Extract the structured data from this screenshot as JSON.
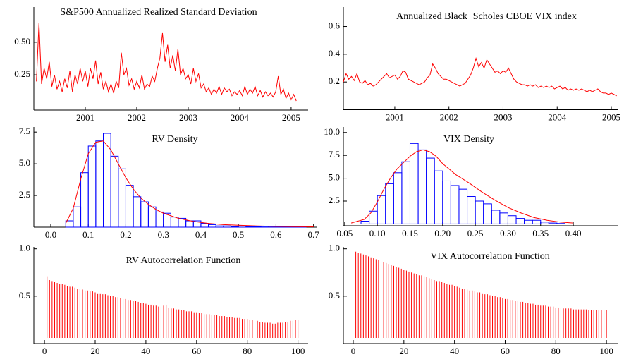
{
  "chart_data": [
    {
      "type": "line",
      "title": "S&P500 Annualized Realized Standard Deviation",
      "color": "#ff0000",
      "x": [
        2000.05,
        2000.1,
        2000.15,
        2000.2,
        2000.25,
        2000.3,
        2000.35,
        2000.4,
        2000.45,
        2000.5,
        2000.55,
        2000.6,
        2000.65,
        2000.7,
        2000.75,
        2000.8,
        2000.85,
        2000.9,
        2000.95,
        2001,
        2001.05,
        2001.1,
        2001.15,
        2001.2,
        2001.25,
        2001.3,
        2001.35,
        2001.4,
        2001.45,
        2001.5,
        2001.55,
        2001.6,
        2001.65,
        2001.7,
        2001.75,
        2001.8,
        2001.85,
        2001.9,
        2001.95,
        2002,
        2002.05,
        2002.1,
        2002.15,
        2002.2,
        2002.25,
        2002.3,
        2002.35,
        2002.4,
        2002.45,
        2002.5,
        2002.55,
        2002.6,
        2002.65,
        2002.7,
        2002.75,
        2002.8,
        2002.85,
        2002.9,
        2002.95,
        2003,
        2003.05,
        2003.1,
        2003.15,
        2003.2,
        2003.25,
        2003.3,
        2003.35,
        2003.4,
        2003.45,
        2003.5,
        2003.55,
        2003.6,
        2003.65,
        2003.7,
        2003.75,
        2003.8,
        2003.85,
        2003.9,
        2003.95,
        2004,
        2004.05,
        2004.1,
        2004.15,
        2004.2,
        2004.25,
        2004.3,
        2004.35,
        2004.4,
        2004.45,
        2004.5,
        2004.55,
        2004.6,
        2004.65,
        2004.7,
        2004.75,
        2004.8,
        2004.85,
        2004.9,
        2004.95,
        2005,
        2005.05,
        2005.1
      ],
      "values": [
        0.2,
        0.65,
        0.18,
        0.3,
        0.22,
        0.35,
        0.16,
        0.25,
        0.14,
        0.2,
        0.12,
        0.22,
        0.15,
        0.28,
        0.12,
        0.25,
        0.18,
        0.3,
        0.2,
        0.28,
        0.16,
        0.3,
        0.22,
        0.36,
        0.18,
        0.27,
        0.14,
        0.2,
        0.12,
        0.18,
        0.11,
        0.2,
        0.15,
        0.42,
        0.25,
        0.3,
        0.17,
        0.22,
        0.14,
        0.2,
        0.15,
        0.25,
        0.14,
        0.18,
        0.16,
        0.24,
        0.2,
        0.3,
        0.38,
        0.57,
        0.35,
        0.48,
        0.3,
        0.4,
        0.28,
        0.45,
        0.25,
        0.3,
        0.22,
        0.25,
        0.18,
        0.3,
        0.2,
        0.26,
        0.15,
        0.18,
        0.12,
        0.15,
        0.1,
        0.14,
        0.11,
        0.16,
        0.1,
        0.15,
        0.12,
        0.14,
        0.09,
        0.12,
        0.1,
        0.13,
        0.09,
        0.16,
        0.1,
        0.14,
        0.11,
        0.16,
        0.09,
        0.13,
        0.08,
        0.12,
        0.09,
        0.11,
        0.08,
        0.12,
        0.24,
        0.1,
        0.14,
        0.07,
        0.11,
        0.06,
        0.1,
        0.05
      ],
      "xlim": [
        2000.0,
        2005.33
      ],
      "xticks": [
        2001,
        2002,
        2003,
        2004,
        2005
      ],
      "ylim": [
        -0.02,
        0.77
      ],
      "yticks": [
        0.25,
        {
          "value": 0.5,
          "label": "0.50"
        }
      ]
    },
    {
      "type": "line",
      "title": "Annualized Black−Scholes CBOE VIX index",
      "color": "#ff0000",
      "x": [
        2000.05,
        2000.1,
        2000.15,
        2000.2,
        2000.25,
        2000.3,
        2000.35,
        2000.4,
        2000.45,
        2000.5,
        2000.55,
        2000.6,
        2000.65,
        2000.7,
        2000.75,
        2000.8,
        2000.85,
        2000.9,
        2000.95,
        2001,
        2001.05,
        2001.1,
        2001.15,
        2001.2,
        2001.25,
        2001.3,
        2001.35,
        2001.4,
        2001.45,
        2001.5,
        2001.55,
        2001.6,
        2001.65,
        2001.7,
        2001.75,
        2001.8,
        2001.85,
        2001.9,
        2001.95,
        2002,
        2002.05,
        2002.1,
        2002.15,
        2002.2,
        2002.25,
        2002.3,
        2002.35,
        2002.4,
        2002.45,
        2002.5,
        2002.55,
        2002.6,
        2002.65,
        2002.7,
        2002.75,
        2002.8,
        2002.85,
        2002.9,
        2002.95,
        2003,
        2003.05,
        2003.1,
        2003.15,
        2003.2,
        2003.25,
        2003.3,
        2003.35,
        2003.4,
        2003.45,
        2003.5,
        2003.55,
        2003.6,
        2003.65,
        2003.7,
        2003.75,
        2003.8,
        2003.85,
        2003.9,
        2003.95,
        2004,
        2004.05,
        2004.1,
        2004.15,
        2004.2,
        2004.25,
        2004.3,
        2004.35,
        2004.4,
        2004.45,
        2004.5,
        2004.55,
        2004.6,
        2004.65,
        2004.7,
        2004.75,
        2004.8,
        2004.85,
        2004.9,
        2004.95,
        2005,
        2005.05,
        2005.1
      ],
      "values": [
        0.2,
        0.26,
        0.22,
        0.24,
        0.21,
        0.26,
        0.2,
        0.19,
        0.21,
        0.18,
        0.19,
        0.17,
        0.18,
        0.2,
        0.22,
        0.24,
        0.26,
        0.23,
        0.24,
        0.25,
        0.22,
        0.24,
        0.28,
        0.27,
        0.22,
        0.21,
        0.2,
        0.19,
        0.18,
        0.19,
        0.2,
        0.23,
        0.25,
        0.33,
        0.3,
        0.26,
        0.24,
        0.22,
        0.22,
        0.21,
        0.2,
        0.19,
        0.18,
        0.17,
        0.18,
        0.19,
        0.22,
        0.25,
        0.3,
        0.37,
        0.31,
        0.34,
        0.3,
        0.36,
        0.33,
        0.3,
        0.27,
        0.28,
        0.26,
        0.28,
        0.27,
        0.3,
        0.26,
        0.22,
        0.2,
        0.19,
        0.18,
        0.18,
        0.17,
        0.18,
        0.17,
        0.18,
        0.16,
        0.17,
        0.16,
        0.17,
        0.16,
        0.17,
        0.15,
        0.16,
        0.17,
        0.15,
        0.16,
        0.14,
        0.15,
        0.14,
        0.15,
        0.14,
        0.15,
        0.14,
        0.13,
        0.14,
        0.13,
        0.14,
        0.15,
        0.13,
        0.12,
        0.12,
        0.11,
        0.12,
        0.11,
        0.1
      ],
      "xlim": [
        2000.05,
        2005.13
      ],
      "xticks": [
        2001,
        2002,
        2003,
        2004,
        2005
      ],
      "ylim": [
        0,
        0.74
      ],
      "yticks": [
        0.2,
        0.4,
        0.6
      ]
    },
    {
      "type": "histogram",
      "title": "RV Density",
      "color": "#0000ff",
      "bins": [
        0.04,
        0.06,
        0.08,
        0.1,
        0.12,
        0.14,
        0.16,
        0.18,
        0.2,
        0.22,
        0.24,
        0.26,
        0.28,
        0.3,
        0.32,
        0.34,
        0.36,
        0.38,
        0.4,
        0.42,
        0.44,
        0.46,
        0.48,
        0.5,
        0.52,
        0.54,
        0.56,
        0.58,
        0.6,
        0.62,
        0.64,
        0.66,
        0.68
      ],
      "values": [
        0.5,
        1.6,
        4.3,
        6.4,
        6.8,
        7.4,
        5.6,
        4.6,
        3.3,
        2.4,
        2.0,
        1.6,
        1.2,
        1.1,
        0.8,
        0.7,
        0.5,
        0.5,
        0.3,
        0.2,
        0.1,
        0.1,
        0.05,
        0.1,
        0.05,
        0.05,
        0.02,
        0.02,
        0.02,
        0.01,
        0.01,
        0.01
      ],
      "density": {
        "color": "#ff0000",
        "x": [
          0.04,
          0.06,
          0.08,
          0.1,
          0.12,
          0.14,
          0.16,
          0.18,
          0.2,
          0.22,
          0.24,
          0.26,
          0.28,
          0.3,
          0.34,
          0.38,
          0.42,
          0.46,
          0.5,
          0.55,
          0.6,
          0.65,
          0.7
        ],
        "values": [
          0.3,
          1.5,
          3.8,
          5.8,
          6.7,
          6.8,
          6.1,
          5.0,
          3.9,
          3.0,
          2.3,
          1.8,
          1.4,
          1.1,
          0.7,
          0.45,
          0.3,
          0.2,
          0.15,
          0.1,
          0.06,
          0.04,
          0.03
        ]
      },
      "xlim": [
        -0.045,
        0.71
      ],
      "xticks": [
        {
          "value": 0,
          "label": "0.0"
        },
        0.1,
        0.2,
        0.3,
        0.4,
        0.5,
        0.6,
        0.7
      ],
      "ylim": [
        0,
        7.9
      ],
      "yticks": [
        2.5,
        {
          "value": 5,
          "label": "5.0"
        },
        7.5
      ]
    },
    {
      "type": "histogram",
      "title": "VIX Density",
      "color": "#0000ff",
      "bins": [
        0.075,
        0.0875,
        0.1,
        0.1125,
        0.125,
        0.1375,
        0.15,
        0.1625,
        0.175,
        0.1875,
        0.2,
        0.2125,
        0.225,
        0.2375,
        0.25,
        0.2625,
        0.275,
        0.2875,
        0.3,
        0.3125,
        0.325,
        0.3375,
        0.35,
        0.3625,
        0.375,
        0.3875
      ],
      "values": [
        0.3,
        1.4,
        3.1,
        4.4,
        5.6,
        6.8,
        8.8,
        8.1,
        7.2,
        5.8,
        4.7,
        4.2,
        3.8,
        3.0,
        2.5,
        2.2,
        1.5,
        1.2,
        0.9,
        0.6,
        0.4,
        0.4,
        0.2,
        0.1,
        0.05
      ],
      "density": {
        "color": "#ff0000",
        "x": [
          0.06,
          0.08,
          0.09,
          0.1,
          0.11,
          0.12,
          0.13,
          0.14,
          0.15,
          0.16,
          0.17,
          0.18,
          0.19,
          0.2,
          0.22,
          0.24,
          0.26,
          0.28,
          0.3,
          0.32,
          0.34,
          0.36,
          0.38,
          0.4
        ],
        "values": [
          0.1,
          0.5,
          1.2,
          2.4,
          3.8,
          5.0,
          6.0,
          6.7,
          7.4,
          7.9,
          8.1,
          7.9,
          7.4,
          6.6,
          5.4,
          4.5,
          3.5,
          2.6,
          1.8,
          1.2,
          0.7,
          0.4,
          0.2,
          0.1
        ]
      },
      "xlim": [
        0.048,
        0.469
      ],
      "xticks": [
        0.05,
        {
          "value": 0.1,
          "label": "0.10"
        },
        0.15,
        {
          "value": 0.2,
          "label": "0.20"
        },
        0.25,
        {
          "value": 0.3,
          "label": "0.30"
        },
        0.35,
        {
          "value": 0.4,
          "label": "0.40"
        }
      ],
      "ylim": [
        -0.2,
        10.6
      ],
      "yticks": [
        2.5,
        {
          "value": 5,
          "label": "5.0"
        },
        7.5,
        {
          "value": 10,
          "label": "10.0"
        }
      ]
    },
    {
      "type": "stem",
      "title": "RV Autocorrelation Function",
      "color": "#ff0000",
      "x": [
        1,
        2,
        3,
        4,
        5,
        6,
        7,
        8,
        9,
        10,
        11,
        12,
        13,
        14,
        15,
        16,
        17,
        18,
        19,
        20,
        21,
        22,
        23,
        24,
        25,
        26,
        27,
        28,
        29,
        30,
        31,
        32,
        33,
        34,
        35,
        36,
        37,
        38,
        39,
        40,
        41,
        42,
        43,
        44,
        45,
        46,
        47,
        48,
        49,
        50,
        51,
        52,
        53,
        54,
        55,
        56,
        57,
        58,
        59,
        60,
        61,
        62,
        63,
        64,
        65,
        66,
        67,
        68,
        69,
        70,
        71,
        72,
        73,
        74,
        75,
        76,
        77,
        78,
        79,
        80,
        81,
        82,
        83,
        84,
        85,
        86,
        87,
        88,
        89,
        90,
        91,
        92,
        93,
        94,
        95,
        96,
        97,
        98,
        99,
        100
      ],
      "values": [
        0.71,
        0.67,
        0.66,
        0.65,
        0.64,
        0.63,
        0.63,
        0.62,
        0.61,
        0.6,
        0.6,
        0.59,
        0.58,
        0.58,
        0.57,
        0.56,
        0.56,
        0.55,
        0.55,
        0.54,
        0.53,
        0.53,
        0.52,
        0.52,
        0.51,
        0.5,
        0.5,
        0.49,
        0.49,
        0.48,
        0.47,
        0.47,
        0.46,
        0.46,
        0.45,
        0.45,
        0.44,
        0.43,
        0.43,
        0.42,
        0.41,
        0.41,
        0.4,
        0.4,
        0.39,
        0.39,
        0.4,
        0.41,
        0.38,
        0.37,
        0.37,
        0.36,
        0.36,
        0.35,
        0.35,
        0.34,
        0.34,
        0.34,
        0.33,
        0.33,
        0.32,
        0.32,
        0.31,
        0.31,
        0.31,
        0.3,
        0.3,
        0.3,
        0.29,
        0.29,
        0.29,
        0.28,
        0.28,
        0.28,
        0.27,
        0.27,
        0.27,
        0.26,
        0.26,
        0.26,
        0.25,
        0.25,
        0.24,
        0.24,
        0.23,
        0.23,
        0.22,
        0.22,
        0.22,
        0.21,
        0.21,
        0.22,
        0.22,
        0.22,
        0.23,
        0.23,
        0.24,
        0.24,
        0.25,
        0.25
      ],
      "xlim": [
        -4.2,
        104
      ],
      "xticks": [
        0,
        20,
        40,
        60,
        80,
        100
      ],
      "ylim": [
        0,
        1.02
      ],
      "yticks": [
        0.5,
        {
          "value": 1,
          "label": "1.0"
        }
      ]
    },
    {
      "type": "stem",
      "title": "VIX Autocorrelation Function",
      "color": "#ff0000",
      "x": [
        1,
        2,
        3,
        4,
        5,
        6,
        7,
        8,
        9,
        10,
        11,
        12,
        13,
        14,
        15,
        16,
        17,
        18,
        19,
        20,
        21,
        22,
        23,
        24,
        25,
        26,
        27,
        28,
        29,
        30,
        31,
        32,
        33,
        34,
        35,
        36,
        37,
        38,
        39,
        40,
        41,
        42,
        43,
        44,
        45,
        46,
        47,
        48,
        49,
        50,
        51,
        52,
        53,
        54,
        55,
        56,
        57,
        58,
        59,
        60,
        61,
        62,
        63,
        64,
        65,
        66,
        67,
        68,
        69,
        70,
        71,
        72,
        73,
        74,
        75,
        76,
        77,
        78,
        79,
        80,
        81,
        82,
        83,
        84,
        85,
        86,
        87,
        88,
        89,
        90,
        91,
        92,
        93,
        94,
        95,
        96,
        97,
        98,
        99,
        100
      ],
      "values": [
        0.97,
        0.96,
        0.95,
        0.94,
        0.93,
        0.92,
        0.91,
        0.9,
        0.89,
        0.88,
        0.87,
        0.86,
        0.85,
        0.84,
        0.83,
        0.82,
        0.81,
        0.8,
        0.79,
        0.78,
        0.77,
        0.76,
        0.75,
        0.74,
        0.73,
        0.72,
        0.72,
        0.71,
        0.7,
        0.69,
        0.68,
        0.67,
        0.66,
        0.66,
        0.65,
        0.64,
        0.63,
        0.62,
        0.62,
        0.61,
        0.6,
        0.59,
        0.58,
        0.58,
        0.57,
        0.56,
        0.56,
        0.55,
        0.54,
        0.54,
        0.53,
        0.52,
        0.52,
        0.51,
        0.5,
        0.5,
        0.49,
        0.49,
        0.48,
        0.47,
        0.47,
        0.46,
        0.46,
        0.45,
        0.45,
        0.44,
        0.44,
        0.43,
        0.43,
        0.42,
        0.42,
        0.41,
        0.41,
        0.4,
        0.4,
        0.4,
        0.39,
        0.39,
        0.39,
        0.38,
        0.38,
        0.38,
        0.37,
        0.37,
        0.37,
        0.37,
        0.36,
        0.36,
        0.36,
        0.36,
        0.36,
        0.36,
        0.35,
        0.35,
        0.35,
        0.35,
        0.35,
        0.35,
        0.35,
        0.35
      ],
      "xlim": [
        -3.9,
        104.7
      ],
      "xticks": [
        0,
        20,
        40,
        60,
        80,
        100
      ],
      "ylim": [
        0,
        1.02
      ],
      "yticks": [
        0.5,
        {
          "value": 1,
          "label": "1.0"
        }
      ]
    }
  ]
}
